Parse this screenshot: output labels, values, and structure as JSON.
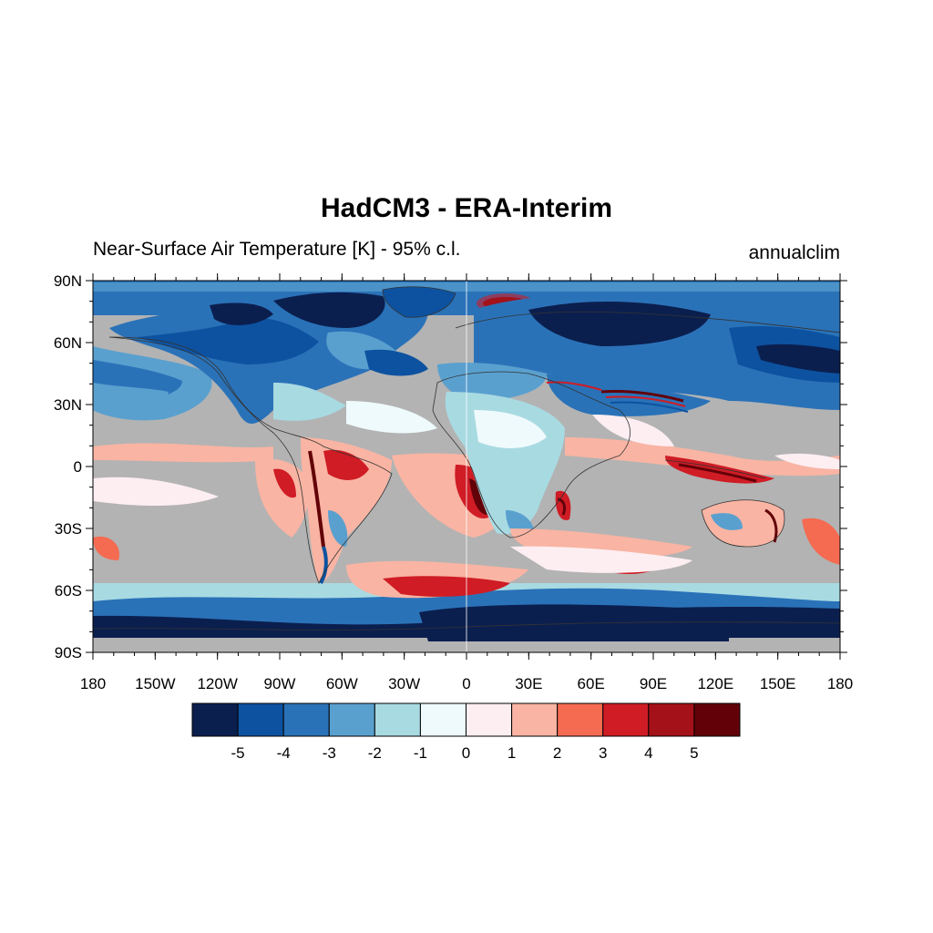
{
  "title": "HadCM3 - ERA-Interim",
  "subtitle_left": "Near-Surface Air Temperature [K] - 95% c.l.",
  "subtitle_right": "annualclim",
  "colors": {
    "insignificant": "#b3b3b3",
    "levels": [
      "#0b1f4f",
      "#0d52a0",
      "#2a72b8",
      "#5aa0cf",
      "#a8dae2",
      "#eefafc",
      "#fdeef2",
      "#f9b4a3",
      "#f46b52",
      "#cf1c25",
      "#a51119",
      "#620208"
    ]
  },
  "axes": {
    "lat_labels": [
      "90N",
      "60N",
      "30N",
      "0",
      "30S",
      "60S",
      "90S"
    ],
    "lon_labels": [
      "180",
      "150W",
      "120W",
      "90W",
      "60W",
      "30W",
      "0",
      "30E",
      "60E",
      "90E",
      "120E",
      "150E",
      "180"
    ]
  },
  "colorbar": {
    "labels": [
      "-5",
      "-4",
      "-3",
      "-2",
      "-1",
      "0",
      "1",
      "2",
      "3",
      "4",
      "5"
    ]
  }
}
